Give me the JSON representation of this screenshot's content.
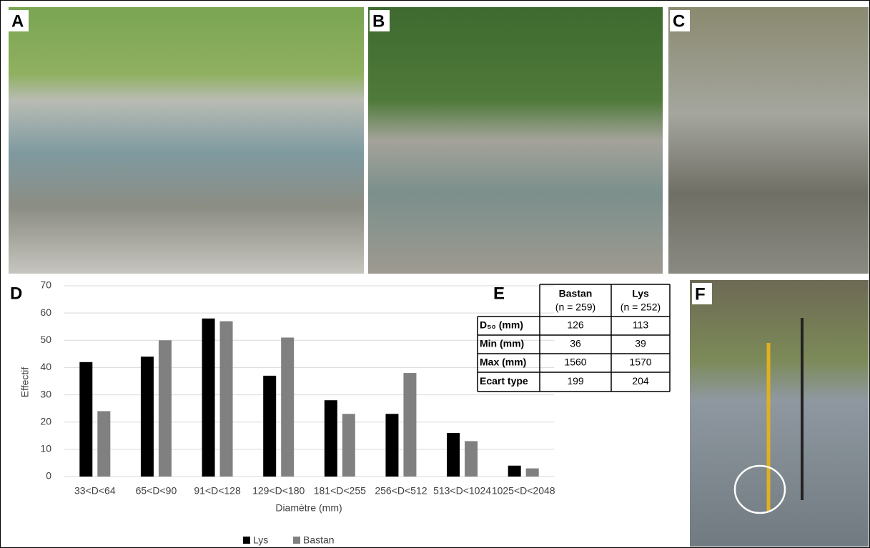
{
  "panel_labels": [
    "A",
    "B",
    "C",
    "D",
    "E",
    "F"
  ],
  "chart_data": {
    "type": "bar",
    "y_label": "Effectif",
    "x_label": "Diamètre (mm)",
    "categories": [
      "33<D<64",
      "65<D<90",
      "91<D<128",
      "129<D<180",
      "181<D<255",
      "256<D<512",
      "513<D<1024",
      "1025<D<2048"
    ],
    "series": [
      {
        "name": "Lys",
        "color": "#000000",
        "values": [
          42,
          44,
          58,
          37,
          28,
          23,
          16,
          4
        ]
      },
      {
        "name": "Bastan",
        "color": "#808080",
        "values": [
          24,
          50,
          57,
          51,
          23,
          38,
          13,
          3
        ]
      }
    ],
    "ylim": [
      0,
      70
    ],
    "yticks": [
      0,
      10,
      20,
      30,
      40,
      50,
      60,
      70
    ],
    "grid": true,
    "legend": "bottom"
  },
  "table": {
    "columns": [
      {
        "name": "Bastan",
        "n": "(n = 259)"
      },
      {
        "name": "Lys",
        "n": "(n = 252)"
      }
    ],
    "rows": [
      [
        "D₅₀ (mm)",
        126,
        113
      ],
      [
        "Min (mm)",
        36,
        39
      ],
      [
        "Max (mm)",
        1560,
        1570
      ],
      [
        "Ecart type",
        199,
        204
      ]
    ]
  }
}
